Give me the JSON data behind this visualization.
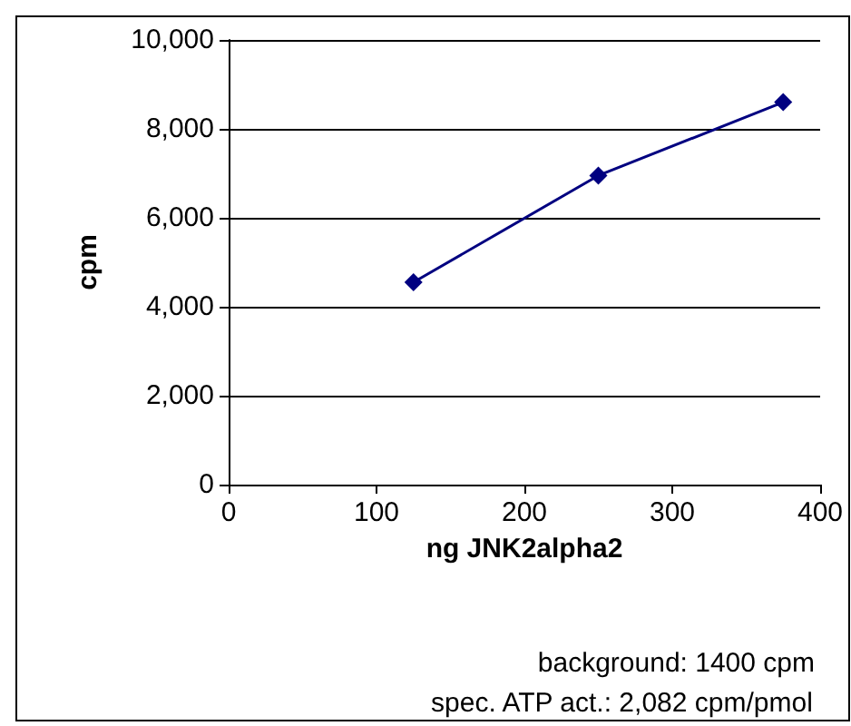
{
  "chart_data": {
    "type": "line",
    "xlabel": "ng JNK2alpha2",
    "ylabel": "cpm",
    "x": [
      125,
      250,
      375
    ],
    "series": [
      {
        "color": "#000080",
        "values": [
          4550,
          6950,
          8600
        ]
      }
    ],
    "xlim": [
      0,
      400
    ],
    "xticks": [
      0,
      100,
      200,
      300,
      400
    ],
    "ylim": [
      0,
      10000
    ],
    "yticks": [
      0,
      {
        "value": 2000,
        "label": "2,000"
      },
      {
        "value": 4000,
        "label": "4,000"
      },
      {
        "value": 6000,
        "label": "6,000"
      },
      {
        "value": 8000,
        "label": "8,000"
      },
      {
        "value": 10000,
        "label": "10,000"
      }
    ],
    "grid": "y",
    "legend": false,
    "marker": "diamond",
    "line_style": "solid",
    "annotations": [
      "background: 1400 cpm",
      "spec. ATP act.: 2,082 cpm/pmol"
    ]
  }
}
